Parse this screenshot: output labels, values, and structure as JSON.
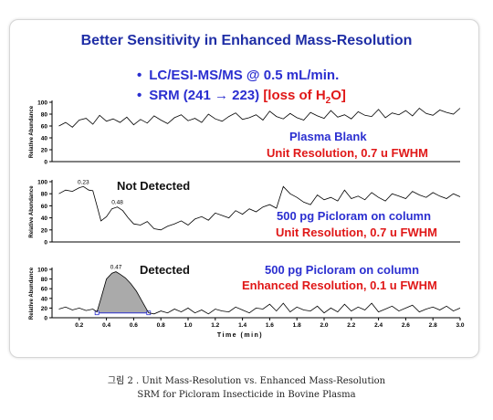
{
  "slide": {
    "title": "Better Sensitivity in Enhanced Mass-Resolution",
    "bullet1": "LC/ESI-MS/MS @ 0.5 mL/min.",
    "bullet2_prefix": "SRM (241 → 223) ",
    "bullet2_red": "[loss of H",
    "bullet2_sub": "2",
    "bullet2_red_end": "O]",
    "bullet_glyph": "•"
  },
  "caption": {
    "line1": "그림 2 . Unit Mass-Resolution vs. Enhanced Mass-Resolution",
    "line2": "SRM for Picloram Insecticide in Bovine Plasma"
  },
  "colors": {
    "blue_text": "#2b2fd0",
    "red_text": "#e01818",
    "title": "#1f2ea6",
    "peak_fill": "#aaaaaa"
  },
  "chart_data": [
    {
      "type": "line",
      "ylabel": "Relative Abundance",
      "ylim": [
        0,
        100
      ],
      "yticks": [
        0,
        20,
        40,
        60,
        80,
        100
      ],
      "xlim": [
        0,
        3.0
      ],
      "labels": {
        "line1": "Plasma Blank",
        "line2": "Unit Resolution, 0.7 u FWHM"
      },
      "annotations": [],
      "series": [
        {
          "x": [
            0.05,
            0.1,
            0.15,
            0.2,
            0.25,
            0.3,
            0.35,
            0.4,
            0.45,
            0.5,
            0.55,
            0.6,
            0.65,
            0.7,
            0.75,
            0.8,
            0.85,
            0.9,
            0.95,
            1.0,
            1.05,
            1.1,
            1.15,
            1.2,
            1.25,
            1.3,
            1.35,
            1.4,
            1.45,
            1.5,
            1.55,
            1.6,
            1.65,
            1.7,
            1.75,
            1.8,
            1.85,
            1.9,
            1.95,
            2.0,
            2.05,
            2.1,
            2.15,
            2.2,
            2.25,
            2.3,
            2.35,
            2.4,
            2.45,
            2.5,
            2.55,
            2.6,
            2.65,
            2.7,
            2.75,
            2.8,
            2.85,
            2.9,
            2.95,
            3.0
          ],
          "y": [
            60,
            66,
            58,
            70,
            73,
            63,
            78,
            68,
            72,
            66,
            75,
            62,
            71,
            65,
            77,
            70,
            64,
            74,
            79,
            69,
            73,
            66,
            80,
            72,
            68,
            76,
            82,
            71,
            74,
            79,
            70,
            85,
            76,
            72,
            81,
            74,
            70,
            83,
            77,
            73,
            86,
            75,
            79,
            72,
            84,
            78,
            76,
            88,
            74,
            82,
            79,
            86,
            77,
            90,
            81,
            78,
            87,
            83,
            80,
            90
          ]
        }
      ]
    },
    {
      "type": "line",
      "ylabel": "Relative Abundance",
      "ylim": [
        0,
        100
      ],
      "yticks": [
        0,
        20,
        40,
        60,
        80,
        100
      ],
      "xlim": [
        0,
        3.0
      ],
      "labels": {
        "status": "Not Detected",
        "line1": "500 pg Picloram on column",
        "line2": "Unit Resolution, 0.7 u FWHM"
      },
      "annotations": [
        {
          "x": 0.23,
          "text": "0.23"
        },
        {
          "x": 0.48,
          "text": "0.48"
        }
      ],
      "series": [
        {
          "x": [
            0.05,
            0.1,
            0.15,
            0.2,
            0.23,
            0.27,
            0.3,
            0.33,
            0.36,
            0.4,
            0.44,
            0.48,
            0.52,
            0.56,
            0.6,
            0.65,
            0.7,
            0.75,
            0.8,
            0.85,
            0.9,
            0.95,
            1.0,
            1.05,
            1.1,
            1.15,
            1.2,
            1.25,
            1.3,
            1.35,
            1.4,
            1.45,
            1.5,
            1.55,
            1.6,
            1.65,
            1.7,
            1.75,
            1.8,
            1.85,
            1.9,
            1.95,
            2.0,
            2.05,
            2.1,
            2.15,
            2.2,
            2.25,
            2.3,
            2.35,
            2.4,
            2.45,
            2.5,
            2.55,
            2.6,
            2.65,
            2.7,
            2.75,
            2.8,
            2.85,
            2.9,
            2.95,
            3.0
          ],
          "y": [
            80,
            86,
            84,
            90,
            92,
            86,
            85,
            60,
            35,
            42,
            55,
            58,
            52,
            40,
            30,
            28,
            34,
            22,
            20,
            26,
            30,
            35,
            28,
            38,
            42,
            36,
            48,
            44,
            40,
            52,
            46,
            55,
            50,
            58,
            62,
            56,
            92,
            80,
            74,
            66,
            62,
            78,
            70,
            74,
            68,
            86,
            72,
            76,
            70,
            82,
            74,
            68,
            80,
            76,
            72,
            84,
            78,
            74,
            82,
            76,
            72,
            80,
            75
          ]
        }
      ]
    },
    {
      "type": "area",
      "ylabel": "Relative Abundance",
      "ylim": [
        0,
        100
      ],
      "yticks": [
        0,
        20,
        40,
        60,
        80,
        100
      ],
      "xlim": [
        0,
        3.0
      ],
      "xticks": [
        0.2,
        0.4,
        0.6,
        0.8,
        1.0,
        1.2,
        1.4,
        1.6,
        1.8,
        2.0,
        2.2,
        2.4,
        2.6,
        2.8,
        3.0
      ],
      "xlabel": "Time (min)",
      "labels": {
        "status": "Detected",
        "line1": "500 pg Picloram on column",
        "line2": "Enhanced Resolution, 0.1 u FWHM"
      },
      "annotations": [
        {
          "x": 0.47,
          "text": "0.47"
        }
      ],
      "peak_region": [
        0.33,
        0.71
      ],
      "series": [
        {
          "x": [
            0.05,
            0.1,
            0.15,
            0.2,
            0.25,
            0.3,
            0.33,
            0.36,
            0.4,
            0.44,
            0.47,
            0.5,
            0.54,
            0.58,
            0.62,
            0.66,
            0.7,
            0.71,
            0.75,
            0.8,
            0.85,
            0.9,
            0.95,
            1.0,
            1.05,
            1.1,
            1.15,
            1.2,
            1.25,
            1.3,
            1.35,
            1.4,
            1.45,
            1.5,
            1.55,
            1.6,
            1.65,
            1.7,
            1.75,
            1.8,
            1.85,
            1.9,
            1.95,
            2.0,
            2.05,
            2.1,
            2.15,
            2.2,
            2.25,
            2.3,
            2.35,
            2.4,
            2.45,
            2.5,
            2.55,
            2.6,
            2.65,
            2.7,
            2.75,
            2.8,
            2.85,
            2.9,
            2.95,
            3.0
          ],
          "y": [
            18,
            22,
            16,
            20,
            15,
            18,
            12,
            40,
            80,
            92,
            95,
            90,
            82,
            70,
            55,
            35,
            15,
            10,
            8,
            14,
            10,
            18,
            12,
            20,
            10,
            16,
            8,
            18,
            14,
            12,
            22,
            16,
            10,
            20,
            18,
            28,
            14,
            30,
            12,
            22,
            16,
            14,
            24,
            10,
            20,
            12,
            28,
            14,
            22,
            16,
            30,
            12,
            18,
            24,
            14,
            20,
            26,
            12,
            18,
            22,
            16,
            24,
            14,
            20
          ]
        }
      ]
    }
  ]
}
